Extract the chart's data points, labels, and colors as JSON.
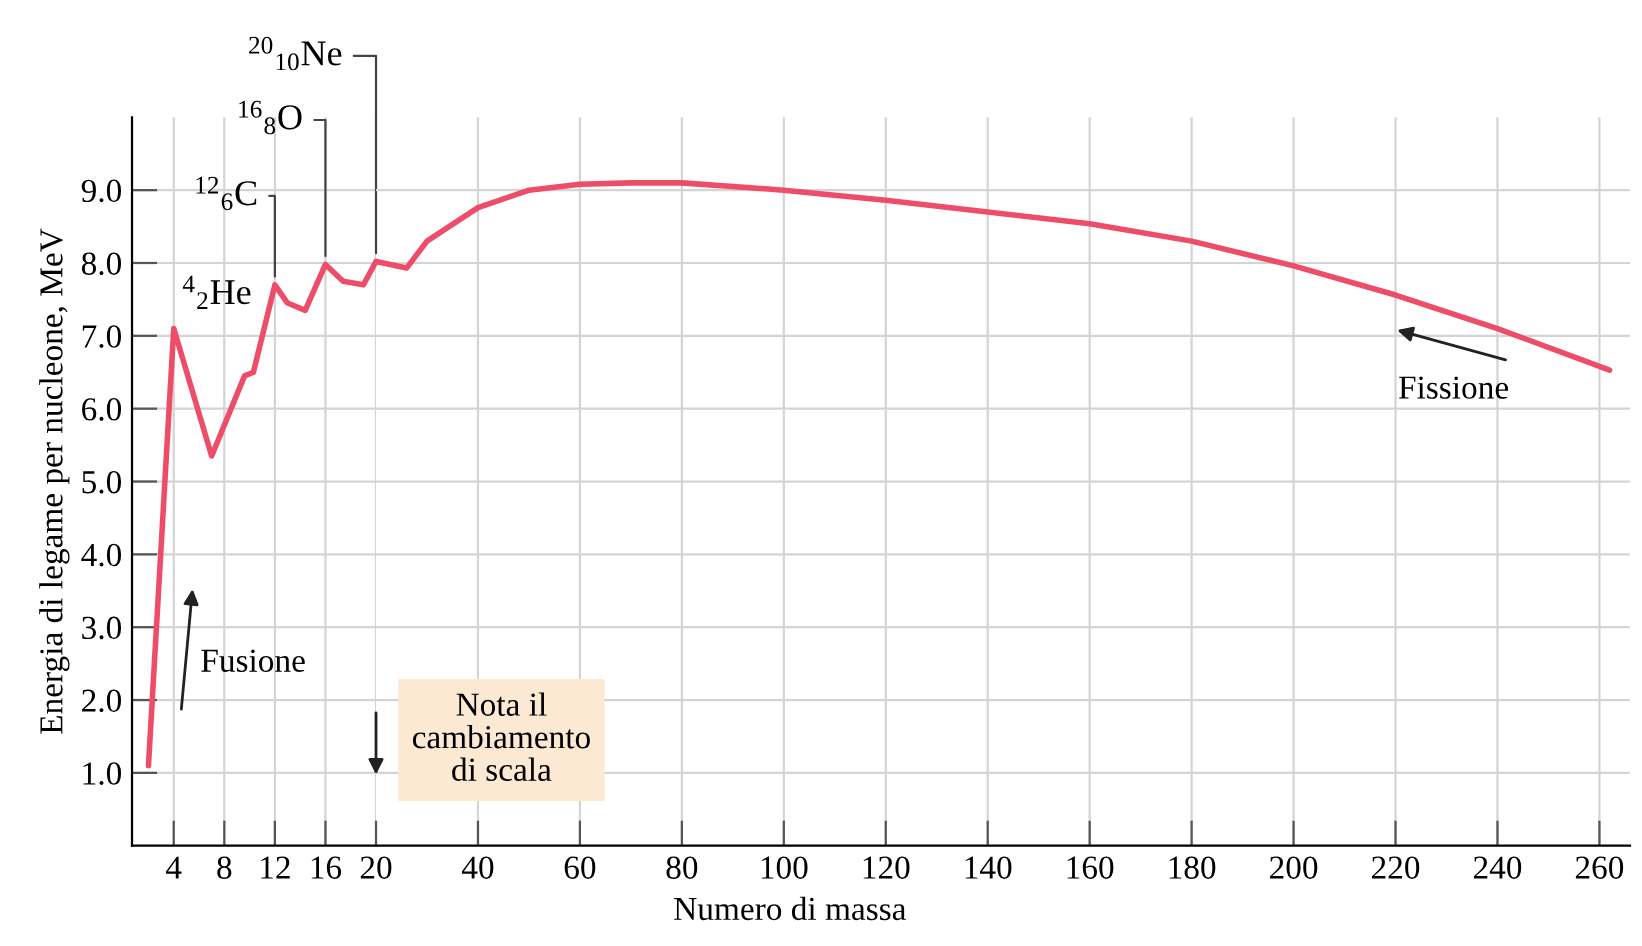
{
  "chart_data": [
    {
      "type": "line",
      "ylabel": "Energia di legame per nucleone, MeV",
      "x": [
        2,
        4,
        7,
        9.6,
        10.3,
        12,
        13,
        14.4,
        16,
        17.4,
        19,
        20
      ],
      "series": [
        {
          "color": "#ee4d6a",
          "values": [
            1.1,
            7.1,
            5.35,
            6.45,
            6.5,
            7.7,
            7.45,
            7.35,
            7.98,
            7.75,
            7.7,
            8.02
          ]
        }
      ],
      "xlim": [
        0.7,
        20
      ],
      "xticks": [
        4,
        8,
        12,
        16,
        20
      ],
      "ylim": [
        0,
        10
      ],
      "yticks": [
        {
          "value": 1,
          "label": "1.0"
        },
        {
          "value": 2,
          "label": "2.0"
        },
        {
          "value": 3,
          "label": "3.0"
        },
        {
          "value": 4,
          "label": "4.0"
        },
        {
          "value": 5,
          "label": "5.0"
        },
        {
          "value": 6,
          "label": "6.0"
        },
        {
          "value": 7,
          "label": "7.0"
        },
        {
          "value": 8,
          "label": "8.0"
        },
        {
          "value": 9,
          "label": "9.0"
        }
      ],
      "grid": true,
      "marker": "none",
      "line_style": "solid",
      "annotations": [
        {
          "text": "$^{4}$$_{2}$He",
          "x": 4,
          "y": 7.1
        },
        {
          "text": "$^{12}$$_{6}$C",
          "x": 12,
          "y": 7.7
        },
        {
          "text": "$^{16}$$_{8}$O",
          "x": 16,
          "y": 7.98
        },
        {
          "text": "$^{20}$$_{10}$Ne",
          "x": 20,
          "y": 8.02
        },
        "Fusione"
      ]
    },
    {
      "type": "line",
      "xlabel": "Numero di massa",
      "x": [
        20,
        26,
        30,
        40,
        50,
        60,
        70,
        80,
        100,
        120,
        140,
        160,
        180,
        200,
        220,
        240,
        262
      ],
      "series": [
        {
          "color": "#ee4d6a",
          "values": [
            8.02,
            7.93,
            8.3,
            8.76,
            9.0,
            9.08,
            9.1,
            9.1,
            9.0,
            8.86,
            8.7,
            8.54,
            8.3,
            7.96,
            7.56,
            7.1,
            6.53
          ]
        }
      ],
      "xlim": [
        20,
        266
      ],
      "xticks": [
        40,
        60,
        80,
        100,
        120,
        140,
        160,
        180,
        200,
        220,
        240,
        260
      ],
      "ylim": [
        0,
        10
      ],
      "yticks": [
        1,
        2,
        3,
        4,
        5,
        6,
        7,
        8,
        9
      ],
      "tick_labels": "x",
      "grid": true,
      "marker": "none",
      "line_style": "solid",
      "annotations": [
        "Fissione",
        "Nota il\ncambiamento\ndi scala"
      ]
    }
  ]
}
